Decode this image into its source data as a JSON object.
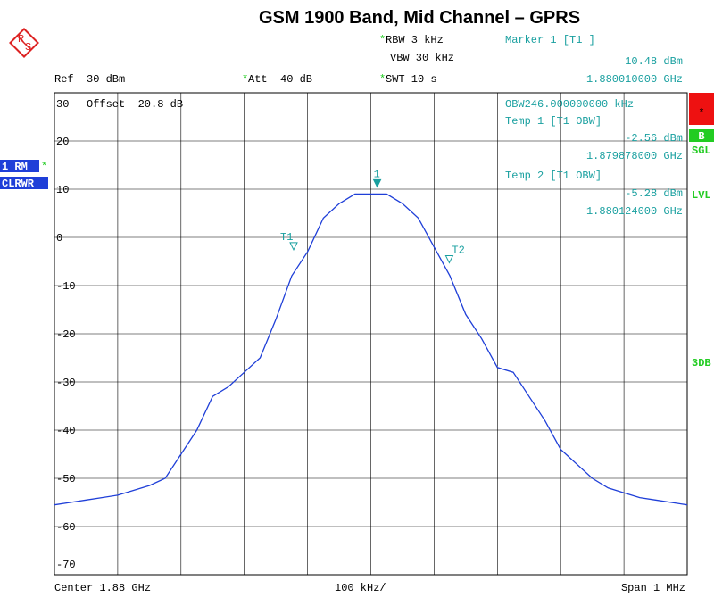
{
  "chart_data": {
    "type": "line",
    "title": "GSM 1900 Band, Mid Channel – GPRS",
    "star": "*",
    "ylim": [
      -70,
      30
    ],
    "yticks": [
      30,
      20,
      10,
      0,
      -10,
      -20,
      -30,
      -40,
      -50,
      -60,
      -70
    ],
    "xlim": [
      1.8795,
      1.8805
    ],
    "xticks": [
      1.8795,
      1.8796,
      1.8797,
      1.8798,
      1.8799,
      1.88,
      1.8801,
      1.8802,
      1.8803,
      1.8804,
      1.8805
    ],
    "grid": true,
    "x": [
      1.8795,
      1.879525,
      1.87955,
      1.879575,
      1.8796,
      1.879625,
      1.87965,
      1.879675,
      1.8797,
      1.879725,
      1.87975,
      1.879775,
      1.8798,
      1.879825,
      1.87985,
      1.879875,
      1.8799,
      1.879925,
      1.87995,
      1.879975,
      1.88,
      1.880025,
      1.88005,
      1.880075,
      1.8801,
      1.880125,
      1.88015,
      1.880175,
      1.8802,
      1.880225,
      1.88025,
      1.880275,
      1.8803,
      1.880325,
      1.88035,
      1.880375,
      1.8804,
      1.880425,
      1.88045,
      1.880475,
      1.8805
    ],
    "series": [
      {
        "name": "1 RM",
        "color": "#1f3fd8",
        "values": [
          -55.5,
          -55,
          -54.5,
          -54,
          -53.5,
          -52.5,
          -51.5,
          -50,
          -45,
          -40,
          -33,
          -31,
          -28,
          -25,
          -17,
          -8,
          -3,
          4,
          7,
          9,
          9,
          9,
          7,
          4,
          -2,
          -8,
          -16,
          -21,
          -27,
          -28,
          -33,
          -38,
          -44,
          -47,
          -50,
          -52,
          -53,
          -54,
          -54.5,
          -55,
          -55.5
        ]
      }
    ],
    "markers": [
      {
        "label": "1",
        "x": 1.88001,
        "y": 10.48,
        "filled": true
      },
      {
        "label": "T1",
        "x": 1.879878,
        "y": -2.56,
        "filled": false
      },
      {
        "label": "T2",
        "x": 1.880124,
        "y": -5.28,
        "filled": false
      }
    ],
    "annotations": [
      "RBW 3 kHz",
      "VBW 30 kHz",
      "Ref  30 dBm",
      "Att  40 dB",
      "SWT 10 s",
      "Marker 1 [T1 ]",
      "10.48 dBm",
      "1.880010000 GHz",
      "OBW246.000000000 kHz",
      "Temp 1 [T1 OBW]",
      "-2.56 dBm",
      "1.879878000 GHz",
      "Temp 2 [T1 OBW]",
      "-5.28 dBm",
      "1.880124000 GHz",
      "Offset  20.8 dB",
      "Center 1.88 GHz",
      "100 kHz/",
      "Span 1 MHz"
    ],
    "side_labels": [
      "1 RM",
      "CLRWR",
      "B",
      "SGL",
      "LVL",
      "3DB"
    ]
  }
}
